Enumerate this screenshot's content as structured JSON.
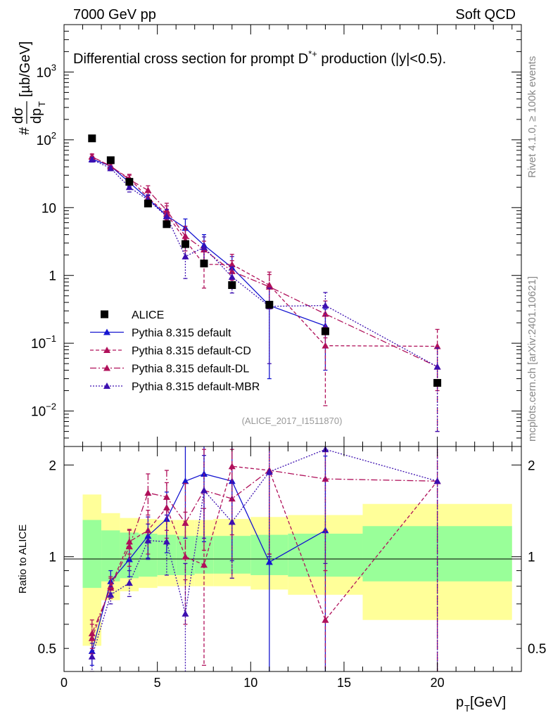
{
  "header": {
    "left": "7000 GeV pp",
    "right": "Soft QCD",
    "side_top": "Rivet 4.1.0, ≥ 100k events",
    "side_bottom": "mcplots.cern.ch [arXiv:2401.10621]"
  },
  "chart_data": [
    {
      "panel": "main",
      "type": "scatter",
      "title": "Differential cross section for prompt D*+ production (|y|<0.5).",
      "title_parts": {
        "before": "Differential cross section for prompt D",
        "sup": "*+",
        "after": " production (|y|<0.5)."
      },
      "ylabel_parts": {
        "hash": "#",
        "num": "dσ",
        "den": "dp",
        "sub": "T",
        "unit": "[µb/GeV]"
      },
      "yscale": "log",
      "ylim": [
        0.003,
        5000
      ],
      "xlim": [
        0,
        24.5
      ],
      "y_ticks": [
        {
          "v": 1000,
          "base": "10",
          "exp": "3"
        },
        {
          "v": 100,
          "base": "10",
          "exp": "2"
        },
        {
          "v": 10,
          "base": "10",
          "exp": ""
        },
        {
          "v": 1,
          "base": "1",
          "exp": ""
        },
        {
          "v": 0.1,
          "base": "10",
          "exp": "−1"
        },
        {
          "v": 0.01,
          "base": "10",
          "exp": "−2"
        }
      ],
      "watermark": "(ALICE_2017_I1511870)",
      "legend": [
        {
          "label": "ALICE",
          "color": "#000000",
          "marker": "square",
          "dash": ""
        },
        {
          "label": "Pythia 8.315 default",
          "color": "#1515d0",
          "marker": "triangle",
          "dash": ""
        },
        {
          "label": "Pythia 8.315 default-CD",
          "color": "#b0105a",
          "marker": "triangle",
          "dash": "5,3"
        },
        {
          "label": "Pythia 8.315 default-DL",
          "color": "#b0105a",
          "marker": "triangle",
          "dash": "9,3,2,3"
        },
        {
          "label": "Pythia 8.315 default-MBR",
          "color": "#3c0fb0",
          "marker": "triangle",
          "dash": "2,2"
        }
      ],
      "data": {
        "name": "ALICE",
        "x": [
          1.5,
          2.5,
          3.5,
          4.5,
          5.5,
          6.5,
          7.5,
          9.0,
          11.0,
          14.0,
          20.0
        ],
        "y": [
          105,
          50,
          24,
          11.5,
          5.7,
          2.9,
          1.5,
          0.72,
          0.37,
          0.15,
          0.026
        ]
      },
      "series": [
        {
          "name": "Pythia 8.315 default",
          "color": "#1515d0",
          "dash": "",
          "x": [
            1.5,
            2.5,
            3.5,
            4.5,
            5.5,
            6.5,
            7.5,
            9.0,
            11.0,
            14.0
          ],
          "y": [
            52,
            41,
            23.5,
            13.5,
            7.6,
            5.0,
            2.8,
            1.3,
            0.36,
            0.18
          ],
          "err": [
            5,
            4,
            3,
            2,
            1.8,
            1.8,
            1.2,
            0.6,
            0.33,
            0.14
          ]
        },
        {
          "name": "Pythia 8.315 default-CD",
          "color": "#b0105a",
          "dash": "5,3",
          "x": [
            1.5,
            2.5,
            3.5,
            4.5,
            5.5,
            6.5,
            7.5,
            9.0,
            11.0,
            14.0,
            20.0
          ],
          "y": [
            57,
            40,
            27,
            14,
            8.1,
            3.3,
            1.45,
            1.45,
            0.72,
            0.092,
            0.09
          ],
          "err": [
            5,
            4,
            4,
            3,
            2.5,
            1.5,
            0.8,
            0.6,
            0.4,
            0.08,
            0.07
          ]
        },
        {
          "name": "Pythia 8.315 default-DL",
          "color": "#b0105a",
          "dash": "9,3,2,3",
          "x": [
            1.5,
            2.5,
            3.5,
            4.5,
            5.5,
            6.5,
            7.5,
            9.0,
            11.0,
            14.0,
            20.0
          ],
          "y": [
            56,
            41,
            26,
            18,
            9.1,
            3.8,
            2.4,
            1.15,
            0.68,
            0.27,
            0.045
          ],
          "err": [
            5,
            4,
            4,
            3,
            2.5,
            1.5,
            0.8,
            0.5,
            0.35,
            0.15,
            0.04
          ]
        },
        {
          "name": "Pythia 8.315 default-MBR",
          "color": "#3c0fb0",
          "dash": "2,2",
          "x": [
            1.5,
            2.5,
            3.5,
            4.5,
            5.5,
            6.5,
            7.5,
            9.0,
            11.0,
            14.0,
            20.0
          ],
          "y": [
            51,
            38,
            20,
            13,
            7.4,
            1.9,
            2.6,
            0.95,
            0.35,
            0.36,
            0.045
          ],
          "err": [
            4,
            3,
            3,
            2,
            2.0,
            1.0,
            1.1,
            0.4,
            0.3,
            0.2,
            0.04
          ]
        }
      ]
    },
    {
      "panel": "ratio",
      "type": "line",
      "ylabel": "Ratio to ALICE",
      "yscale": "log",
      "ylim": [
        0.42,
        2.3
      ],
      "xlim": [
        0,
        24.5
      ],
      "xlabel_parts": {
        "main": "p",
        "sub": "T",
        "unit": " [GeV]"
      },
      "x_ticks": [
        0,
        5,
        10,
        15,
        20
      ],
      "y_ticks": [
        {
          "v": 0.5,
          "label": "0.5"
        },
        {
          "v": 1,
          "label": "1"
        },
        {
          "v": 2,
          "label": "2"
        }
      ],
      "bands": {
        "edges": [
          1.0,
          2.0,
          3.0,
          4.0,
          5.0,
          6.0,
          7.0,
          8.0,
          10.0,
          12.0,
          16.0,
          24.0
        ],
        "inner_lo": [
          0.79,
          0.83,
          0.85,
          0.86,
          0.87,
          0.87,
          0.88,
          0.88,
          0.87,
          0.86,
          0.83
        ],
        "inner_hi": [
          1.32,
          1.22,
          1.2,
          1.19,
          1.18,
          1.17,
          1.17,
          1.17,
          1.18,
          1.19,
          1.26
        ],
        "outer_lo": [
          0.51,
          0.72,
          0.77,
          0.79,
          0.8,
          0.8,
          0.8,
          0.8,
          0.78,
          0.75,
          0.62
        ],
        "outer_hi": [
          1.6,
          1.39,
          1.34,
          1.33,
          1.32,
          1.32,
          1.32,
          1.33,
          1.35,
          1.37,
          1.49
        ]
      },
      "series": [
        {
          "name": "Pythia 8.315 default",
          "color": "#1515d0",
          "dash": "",
          "x": [
            1.5,
            2.5,
            3.5,
            4.5,
            5.5,
            6.5,
            7.5,
            9.0,
            11.0,
            14.0
          ],
          "y": [
            0.49,
            0.83,
            0.98,
            1.17,
            1.33,
            1.77,
            1.87,
            1.77,
            0.96,
            1.22
          ],
          "err": [
            0.05,
            0.07,
            0.12,
            0.18,
            0.3,
            0.62,
            0.75,
            0.8,
            0.9,
            0.92
          ]
        },
        {
          "name": "Pythia 8.315 default-CD",
          "color": "#b0105a",
          "dash": "5,3",
          "x": [
            1.5,
            2.5,
            3.5,
            4.5,
            5.5,
            6.5,
            7.5,
            9.0,
            11.0,
            14.0,
            20.0
          ],
          "y": [
            0.54,
            0.8,
            1.12,
            1.22,
            1.45,
            1.0,
            0.94,
            1.98,
            1.92,
            0.62,
            1.77
          ],
          "err": [
            0.06,
            0.06,
            0.1,
            0.2,
            0.3,
            0.4,
            0.5,
            0.8,
            0.9,
            0.6,
            1.4
          ]
        },
        {
          "name": "Pythia 8.315 default-DL",
          "color": "#b0105a",
          "dash": "9,3,2,3",
          "x": [
            1.5,
            2.5,
            3.5,
            4.5,
            5.5,
            6.5,
            7.5,
            9.0,
            11.0,
            14.0,
            20.0
          ],
          "y": [
            0.56,
            0.79,
            1.08,
            1.62,
            1.57,
            1.29,
            1.65,
            1.55,
            1.92,
            1.8,
            1.77
          ],
          "err": [
            0.06,
            0.06,
            0.15,
            0.25,
            0.35,
            0.45,
            0.6,
            0.7,
            0.9,
            0.9,
            1.4
          ]
        },
        {
          "name": "Pythia 8.315 default-MBR",
          "color": "#3c0fb0",
          "dash": "2,2",
          "x": [
            1.5,
            2.5,
            3.5,
            4.5,
            5.5,
            6.5,
            7.5,
            9.0,
            11.0,
            14.0,
            20.0
          ],
          "y": [
            0.47,
            0.75,
            0.82,
            1.13,
            1.12,
            0.65,
            1.65,
            1.3,
            1.9,
            2.25,
            1.77
          ],
          "err": [
            0.05,
            0.05,
            0.08,
            0.15,
            0.25,
            0.3,
            0.5,
            0.45,
            0.9,
            1.3,
            1.4
          ]
        }
      ]
    }
  ]
}
